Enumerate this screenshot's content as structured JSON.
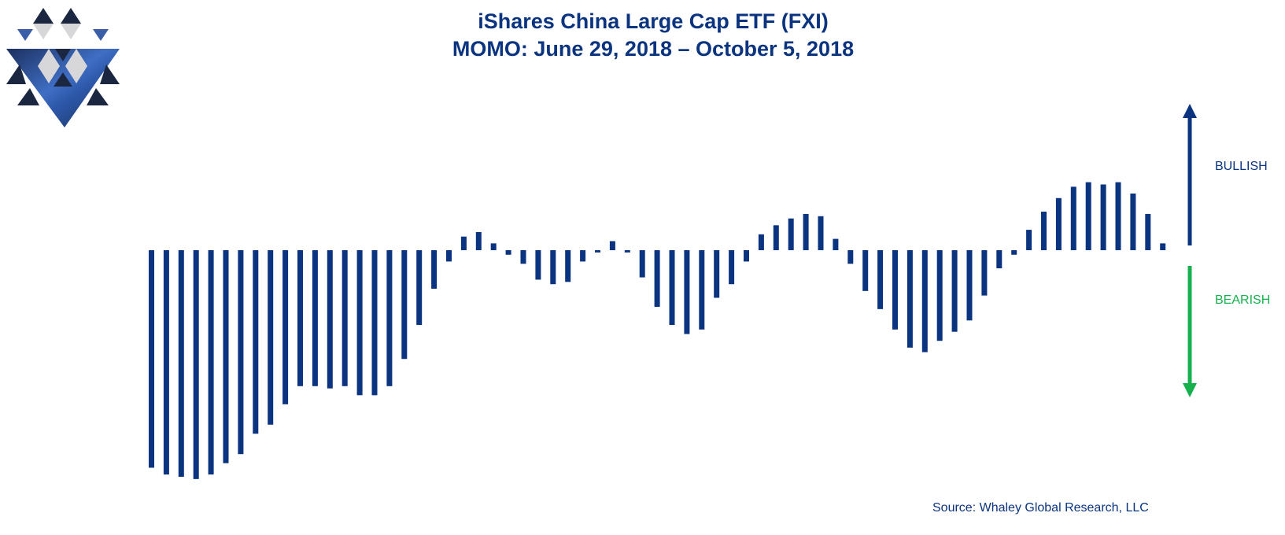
{
  "title_line1": "iShares China Large Cap ETF (FXI)",
  "title_line2": "MOMO: June 29, 2018 – October 5, 2018",
  "bullish_label": "BULLISH",
  "bearish_label": "BEARISH",
  "source": "Source: Whaley Global Research, LLC",
  "colors": {
    "bar": "#0a3380",
    "bullish": "#0a3380",
    "bearish": "#16b04e",
    "title": "#0a3380"
  },
  "chart_data": {
    "type": "bar",
    "title": "iShares China Large Cap ETF (FXI) MOMO: June 29, 2018 – October 5, 2018",
    "xlabel": "",
    "ylabel": "",
    "ylim": [
      -100,
      100
    ],
    "grid": false,
    "legend": "none",
    "values": [
      -96,
      -99,
      -100,
      -101,
      -99,
      -94,
      -90,
      -81,
      -77,
      -68,
      -60,
      -60,
      -61,
      -60,
      -64,
      -64,
      -60,
      -48,
      -33,
      -17,
      -5,
      6,
      8,
      3,
      -2,
      -6,
      -13,
      -15,
      -14,
      -5,
      -1,
      4,
      -1,
      -12,
      -25,
      -33,
      -37,
      -35,
      -21,
      -15,
      -5,
      7,
      11,
      14,
      16,
      15,
      5,
      -6,
      -18,
      -26,
      -35,
      -43,
      -45,
      -40,
      -36,
      -31,
      -20,
      -8,
      -2,
      9,
      17,
      23,
      28,
      30,
      29,
      30,
      25,
      16,
      3
    ]
  }
}
